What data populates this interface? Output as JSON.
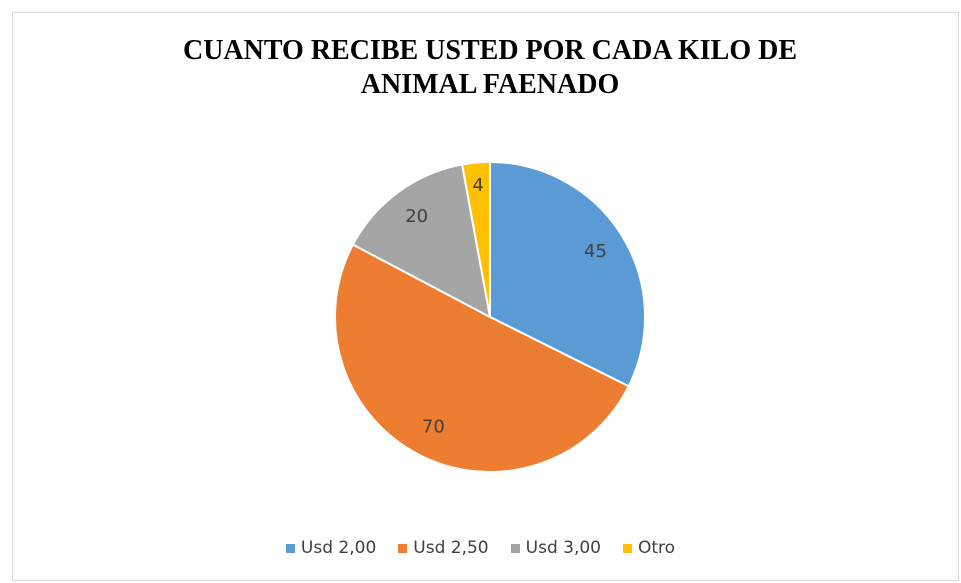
{
  "chart_data": {
    "type": "pie",
    "title": "CUANTO RECIBE USTED POR CADA KILO DE ANIMAL FAENADO",
    "categories": [
      "Usd 2,00",
      "Usd 2,50",
      "Usd 3,00",
      "Otro"
    ],
    "values": [
      45,
      70,
      20,
      4
    ],
    "colors": [
      "#5b9bd5",
      "#ed7d31",
      "#a5a5a5",
      "#ffc000"
    ],
    "legend": "bottom"
  }
}
